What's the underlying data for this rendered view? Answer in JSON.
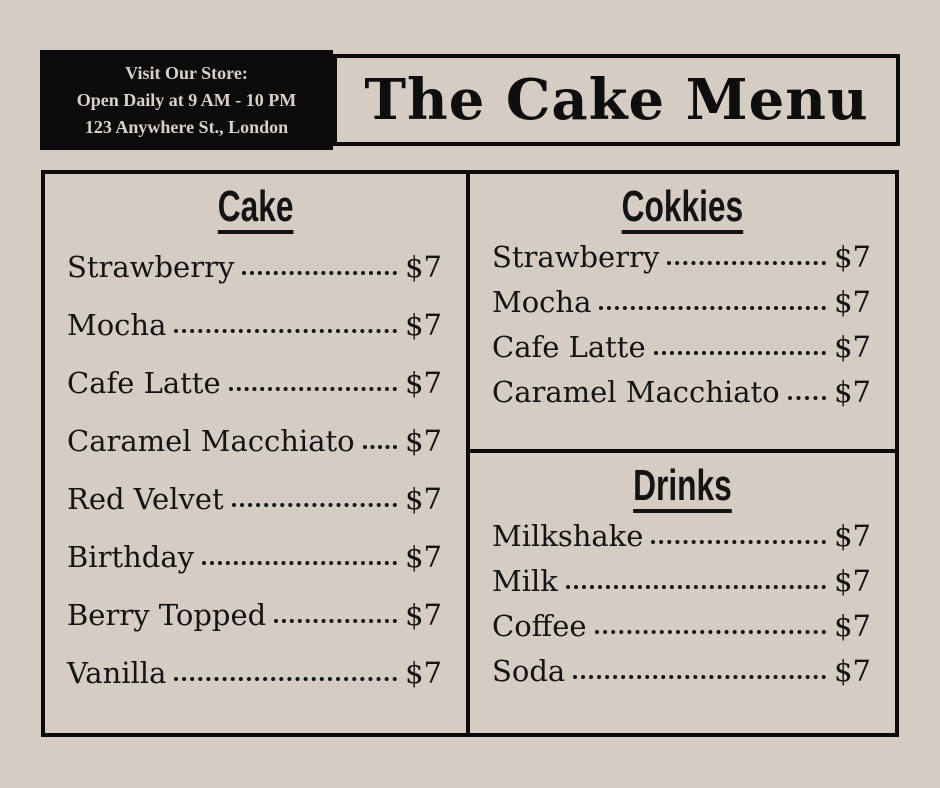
{
  "page": {
    "background_color": "#d5ccc3",
    "ink_color": "#131313"
  },
  "header": {
    "store_info_lines": [
      "Visit Our Store:",
      "Open Daily at 9 AM - 10 PM",
      "123 Anywhere St., London"
    ],
    "title": "The Cake Menu"
  },
  "menu": {
    "sections": [
      {
        "id": "cake",
        "title": "Cake",
        "items": [
          {
            "name": "Strawberry",
            "price": "$7"
          },
          {
            "name": "Mocha",
            "price": "$7"
          },
          {
            "name": "Cafe Latte",
            "price": "$7"
          },
          {
            "name": "Caramel Macchiato",
            "price": "$7"
          },
          {
            "name": "Red Velvet",
            "price": "$7"
          },
          {
            "name": "Birthday",
            "price": "$7"
          },
          {
            "name": "Berry Topped",
            "price": "$7"
          },
          {
            "name": "Vanilla",
            "price": "$7"
          }
        ]
      },
      {
        "id": "cokkies",
        "title": "Cokkies",
        "items": [
          {
            "name": "Strawberry",
            "price": "$7"
          },
          {
            "name": "Mocha",
            "price": "$7"
          },
          {
            "name": "Cafe Latte",
            "price": "$7"
          },
          {
            "name": "Caramel Macchiato",
            "price": "$7"
          }
        ]
      },
      {
        "id": "drinks",
        "title": "Drinks",
        "items": [
          {
            "name": "Milkshake",
            "price": "$7"
          },
          {
            "name": "Milk",
            "price": "$7"
          },
          {
            "name": "Coffee",
            "price": "$7"
          },
          {
            "name": "Soda",
            "price": "$7"
          }
        ]
      }
    ]
  }
}
